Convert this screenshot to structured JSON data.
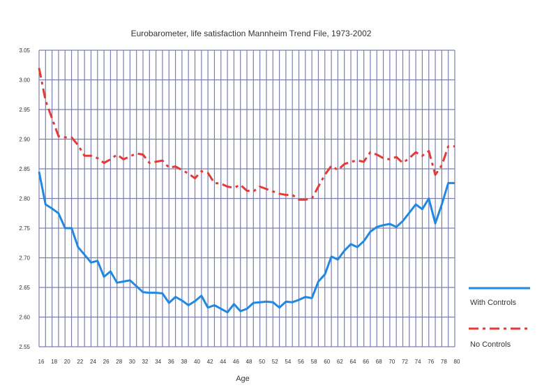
{
  "chart_data": {
    "type": "line",
    "title": "Eurobarometer, life satisfaction Mannheim Trend File, 1973-2002",
    "xlabel": "Age",
    "ylabel": "",
    "xlim": [
      16,
      80
    ],
    "ylim": [
      2.55,
      3.05
    ],
    "grid": true,
    "legend_position": "right",
    "x_ticks": [
      "16",
      "18",
      "20",
      "22",
      "24",
      "26",
      "28",
      "30",
      "32",
      "34",
      "36",
      "38",
      "40",
      "42",
      "44",
      "46",
      "48",
      "50",
      "52",
      "54",
      "56",
      "58",
      "60",
      "62",
      "64",
      "66",
      "68",
      "70",
      "72",
      "74",
      "76",
      "78",
      "80"
    ],
    "y_ticks": [
      "3.05",
      "3.00",
      "2.95",
      "2.90",
      "2.85",
      "2.80",
      "2.75",
      "2.70",
      "2.65",
      "2.60",
      "2.55"
    ],
    "colors": {
      "grid": "#7b7fb0",
      "with_controls": "#1e88e5",
      "no_controls": "#e53935"
    },
    "series": [
      {
        "name": "With Controls",
        "style": "solid",
        "x": [
          16,
          17,
          18,
          19,
          20,
          21,
          22,
          23,
          24,
          25,
          26,
          27,
          28,
          29,
          30,
          31,
          32,
          33,
          34,
          35,
          36,
          37,
          38,
          39,
          40,
          41,
          42,
          43,
          44,
          45,
          46,
          47,
          48,
          49,
          50,
          51,
          52,
          53,
          54,
          55,
          56,
          57,
          58,
          59,
          60,
          61,
          62,
          63,
          64,
          65,
          66,
          67,
          68,
          69,
          70,
          71,
          72,
          73,
          74,
          75,
          76,
          77,
          78,
          79,
          80
        ],
        "values": [
          2.845,
          2.79,
          2.783,
          2.775,
          2.75,
          2.75,
          2.718,
          2.705,
          2.692,
          2.695,
          2.668,
          2.677,
          2.658,
          2.66,
          2.662,
          2.652,
          2.642,
          2.641,
          2.641,
          2.64,
          2.624,
          2.634,
          2.628,
          2.62,
          2.627,
          2.636,
          2.616,
          2.62,
          2.614,
          2.608,
          2.622,
          2.61,
          2.614,
          2.624,
          2.625,
          2.626,
          2.625,
          2.616,
          2.626,
          2.625,
          2.629,
          2.634,
          2.632,
          2.66,
          2.672,
          2.702,
          2.697,
          2.712,
          2.723,
          2.718,
          2.728,
          2.744,
          2.752,
          2.755,
          2.757,
          2.752,
          2.762,
          2.776,
          2.79,
          2.782,
          2.8,
          2.758,
          2.79,
          2.826,
          2.826
        ]
      },
      {
        "name": "No Controls",
        "style": "dash-dot",
        "x": [
          16,
          17,
          18,
          19,
          20,
          21,
          22,
          23,
          24,
          25,
          26,
          27,
          28,
          29,
          30,
          31,
          32,
          33,
          34,
          35,
          36,
          37,
          38,
          39,
          40,
          41,
          42,
          43,
          44,
          45,
          46,
          47,
          48,
          49,
          50,
          51,
          52,
          53,
          54,
          55,
          56,
          57,
          58,
          59,
          60,
          61,
          62,
          63,
          64,
          65,
          66,
          67,
          68,
          69,
          70,
          71,
          72,
          73,
          74,
          75,
          76,
          77,
          78,
          79,
          80
        ],
        "values": [
          3.02,
          2.965,
          2.935,
          2.905,
          2.903,
          2.903,
          2.89,
          2.872,
          2.872,
          2.868,
          2.86,
          2.866,
          2.874,
          2.866,
          2.871,
          2.876,
          2.874,
          2.86,
          2.862,
          2.864,
          2.852,
          2.854,
          2.848,
          2.842,
          2.834,
          2.846,
          2.843,
          2.826,
          2.825,
          2.82,
          2.818,
          2.823,
          2.813,
          2.812,
          2.82,
          2.816,
          2.812,
          2.808,
          2.806,
          2.806,
          2.798,
          2.798,
          2.8,
          2.82,
          2.84,
          2.855,
          2.848,
          2.858,
          2.862,
          2.864,
          2.862,
          2.878,
          2.874,
          2.868,
          2.866,
          2.87,
          2.86,
          2.868,
          2.878,
          2.872,
          2.88,
          2.84,
          2.856,
          2.888,
          2.888
        ]
      }
    ]
  }
}
